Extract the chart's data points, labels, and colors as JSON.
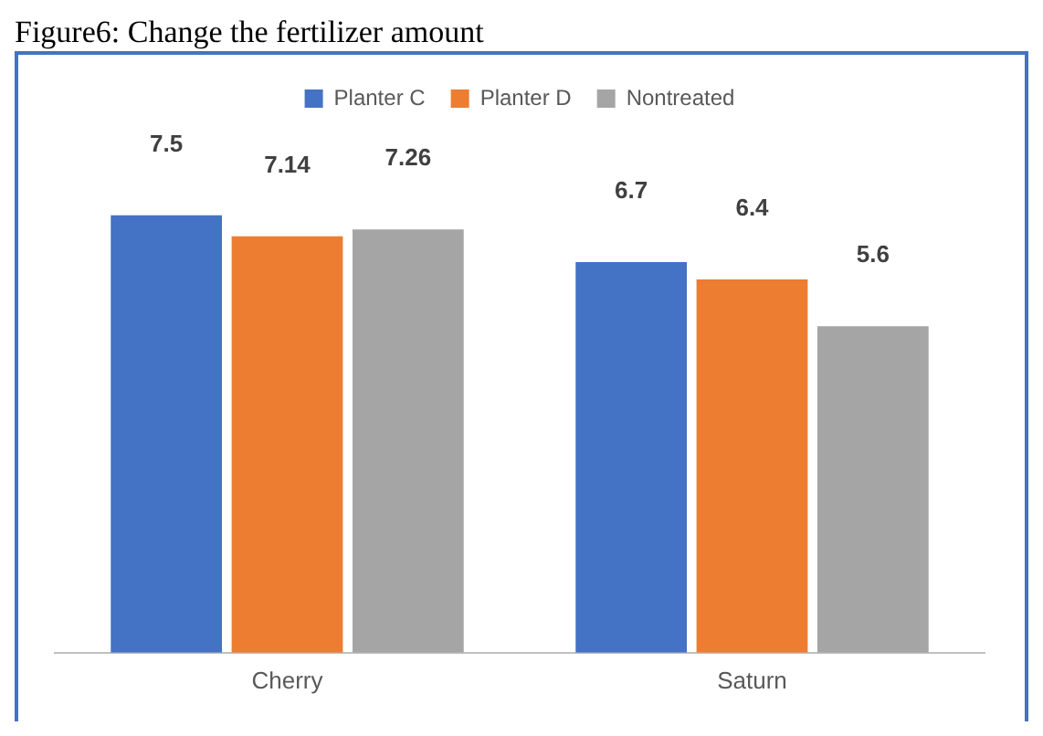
{
  "chart_data": {
    "type": "bar",
    "title": "Figure6: Change the fertilizer amount",
    "categories": [
      "Cherry",
      "Saturn"
    ],
    "series": [
      {
        "name": "Planter C",
        "color": "#4472c4",
        "values": [
          7.5,
          6.7
        ]
      },
      {
        "name": "Planter D",
        "color": "#ed7d31",
        "values": [
          7.14,
          6.4
        ]
      },
      {
        "name": "Nontreated",
        "color": "#a5a5a5",
        "values": [
          7.26,
          5.6
        ]
      }
    ],
    "data_labels": true,
    "legend": "top",
    "grid": false
  }
}
